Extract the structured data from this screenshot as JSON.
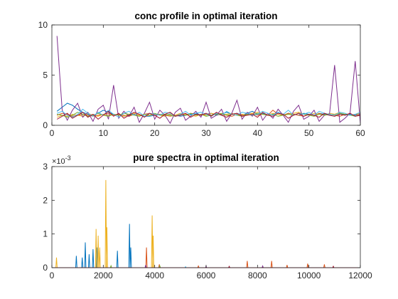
{
  "figure": {
    "background": "#ffffff",
    "series_colors": [
      "#0072BD",
      "#D95319",
      "#EDB120",
      "#7E2F8E",
      "#77AC30",
      "#4DBEEE",
      "#A2142F"
    ]
  },
  "chart_data": [
    {
      "type": "line",
      "title": "conc profile in optimal iteration",
      "xlabel": "",
      "ylabel": "",
      "xlim": [
        0,
        60
      ],
      "ylim": [
        0,
        10
      ],
      "xticks": [
        0,
        10,
        20,
        30,
        40,
        50,
        60
      ],
      "yticks": [
        0,
        5,
        10
      ],
      "x_tick_labels": [
        "0",
        "10",
        "20",
        "30",
        "40",
        "50",
        "60"
      ],
      "y_tick_labels": [
        "0",
        "5",
        "10"
      ],
      "grid": false,
      "legend": "none",
      "x": [
        1,
        2,
        3,
        4,
        5,
        6,
        7,
        8,
        9,
        10,
        11,
        12,
        13,
        14,
        15,
        16,
        17,
        18,
        19,
        20,
        21,
        22,
        23,
        24,
        25,
        26,
        27,
        28,
        29,
        30,
        31,
        32,
        33,
        34,
        35,
        36,
        37,
        38,
        39,
        40,
        41,
        42,
        43,
        44,
        45,
        46,
        47,
        48,
        49,
        50,
        51,
        52,
        53,
        54,
        55,
        56,
        57,
        58,
        59,
        60
      ],
      "series": [
        {
          "color": "#0072BD",
          "values": [
            1.4,
            1.8,
            2.2,
            2.0,
            1.6,
            1.3,
            1.1,
            1.0,
            1.2,
            1.5,
            1.3,
            1.1,
            1.0,
            0.9,
            1.0,
            1.1,
            1.0,
            0.9,
            0.9,
            1.0,
            1.1,
            1.0,
            1.1,
            1.0,
            0.9,
            1.0,
            1.1,
            1.2,
            1.0,
            1.1,
            1.2,
            1.0,
            1.1,
            1.3,
            1.1,
            1.2,
            1.0,
            1.2,
            1.4,
            1.1,
            1.2,
            1.0,
            1.1,
            1.3,
            1.0,
            1.2,
            1.1,
            1.0,
            1.2,
            1.1,
            1.0,
            1.2,
            1.1,
            1.0,
            1.1,
            1.2,
            1.0,
            1.1,
            1.0,
            1.1
          ]
        },
        {
          "color": "#D95319",
          "values": [
            1.0,
            1.2,
            1.1,
            0.9,
            1.0,
            1.1,
            1.0,
            0.9,
            1.0,
            1.1,
            1.2,
            1.0,
            1.1,
            1.0,
            0.9,
            1.1,
            1.0,
            1.1,
            1.2,
            1.0,
            1.1,
            1.0,
            0.9,
            1.0,
            1.1,
            1.0,
            1.2,
            1.1,
            1.0,
            1.1,
            1.0,
            1.2,
            1.1,
            1.0,
            0.9,
            1.1,
            1.0,
            1.1,
            1.2,
            1.0,
            1.1,
            1.0,
            1.5,
            1.1,
            1.0,
            1.2,
            1.1,
            1.0,
            0.9,
            1.1,
            1.0,
            1.2,
            1.0,
            1.1,
            1.0,
            0.9,
            1.1,
            1.0,
            1.1,
            1.0
          ]
        },
        {
          "color": "#EDB120",
          "values": [
            0.8,
            1.0,
            0.9,
            1.1,
            1.0,
            0.9,
            1.2,
            1.0,
            0.9,
            1.1,
            1.0,
            1.1,
            1.0,
            0.9,
            1.1,
            1.2,
            1.0,
            0.9,
            1.0,
            1.1,
            1.0,
            0.9,
            1.1,
            1.0,
            1.2,
            1.1,
            1.0,
            0.9,
            1.1,
            1.0,
            1.2,
            1.1,
            1.0,
            1.1,
            1.2,
            1.0,
            1.1,
            1.0,
            1.2,
            1.3,
            1.1,
            1.0,
            1.2,
            1.1,
            1.0,
            1.1,
            1.2,
            1.3,
            1.1,
            1.0,
            1.2,
            1.1,
            1.0,
            1.2,
            1.1,
            1.3,
            1.2,
            1.0,
            1.1,
            1.2
          ]
        },
        {
          "color": "#7E2F8E",
          "values": [
            8.9,
            1.5,
            0.5,
            1.5,
            2.2,
            0.8,
            1.3,
            0.4,
            1.6,
            2.0,
            0.6,
            4.0,
            0.7,
            1.4,
            0.9,
            1.8,
            0.3,
            1.2,
            2.3,
            0.6,
            1.5,
            1.0,
            0.2,
            1.3,
            1.7,
            0.5,
            0.9,
            1.4,
            0.8,
            2.3,
            0.7,
            1.0,
            1.6,
            0.4,
            1.2,
            2.5,
            0.6,
            1.3,
            0.9,
            1.8,
            0.5,
            1.2,
            0.7,
            1.6,
            1.0,
            0.3,
            1.4,
            2.0,
            0.6,
            0.9,
            1.5,
            0.4,
            1.0,
            1.1,
            6.0,
            0.3,
            0.7,
            1.2,
            6.4,
            0.2
          ]
        },
        {
          "color": "#77AC30",
          "values": [
            1.1,
            1.0,
            0.8,
            1.0,
            1.3,
            1.1,
            0.9,
            1.0,
            1.2,
            1.0,
            0.9,
            1.1,
            1.0,
            1.2,
            1.1,
            1.0,
            0.9,
            1.1,
            1.0,
            1.2,
            1.0,
            1.1,
            1.0,
            0.9,
            1.1,
            1.0,
            1.2,
            1.0,
            1.1,
            0.9,
            1.0,
            1.1,
            1.2,
            1.0,
            1.1,
            1.0,
            0.9,
            1.1,
            1.0,
            1.2,
            1.1,
            1.0,
            1.1,
            0.9,
            1.0,
            1.1,
            1.0,
            1.2,
            1.1,
            1.0,
            0.9,
            1.1,
            1.0,
            1.1,
            1.0,
            1.2,
            1.1,
            1.0,
            0.9,
            1.0
          ]
        },
        {
          "color": "#4DBEEE",
          "values": [
            1.2,
            1.4,
            1.0,
            0.8,
            1.1,
            1.6,
            1.2,
            0.9,
            1.3,
            1.0,
            1.5,
            1.1,
            0.8,
            1.2,
            1.4,
            1.0,
            1.3,
            0.9,
            1.2,
            1.1,
            1.0,
            1.3,
            1.2,
            0.9,
            1.1,
            1.4,
            1.0,
            1.2,
            1.3,
            1.1,
            0.9,
            1.2,
            1.0,
            1.4,
            1.1,
            1.0,
            1.3,
            1.2,
            1.0,
            1.1,
            1.4,
            1.2,
            1.0,
            1.3,
            1.1,
            1.5,
            1.0,
            1.2,
            1.1,
            1.3,
            1.0,
            1.4,
            1.2,
            1.1,
            1.0,
            1.3,
            1.2,
            1.0,
            1.1,
            1.3
          ]
        },
        {
          "color": "#A2142F",
          "values": [
            0.6,
            0.9,
            1.2,
            0.7,
            1.0,
            1.3,
            0.8,
            1.1,
            0.6,
            1.0,
            1.4,
            0.9,
            1.2,
            0.7,
            1.0,
            1.3,
            1.1,
            0.8,
            1.2,
            1.0,
            0.7,
            1.1,
            1.3,
            0.9,
            1.0,
            1.2,
            0.8,
            1.1,
            1.0,
            1.2,
            0.9,
            1.3,
            1.0,
            0.8,
            1.1,
            1.2,
            0.9,
            1.0,
            1.1,
            0.8,
            1.3,
            1.0,
            0.9,
            1.2,
            1.1,
            0.7,
            1.0,
            1.2,
            0.9,
            1.1,
            1.0,
            0.8,
            1.2,
            1.0,
            0.9,
            1.1,
            1.0,
            1.2,
            0.9,
            1.0
          ]
        }
      ]
    },
    {
      "type": "line",
      "title": "pure spectra in optimal iteration",
      "xlabel": "",
      "ylabel": "",
      "xlim": [
        0,
        12000
      ],
      "ylim": [
        0,
        0.003
      ],
      "xticks": [
        0,
        2000,
        4000,
        6000,
        8000,
        10000,
        12000
      ],
      "yticks": [
        0,
        0.001,
        0.002,
        0.003
      ],
      "x_tick_labels": [
        "0",
        "2000",
        "4000",
        "6000",
        "8000",
        "10000",
        "12000"
      ],
      "y_tick_labels": [
        "0",
        "1",
        "2",
        "3"
      ],
      "y_exponent_label": "×10",
      "y_exponent_power": "-3",
      "grid": false,
      "legend": "none",
      "series": [
        {
          "color": "#0072BD",
          "peaks": [
            [
              950,
              0.00035
            ],
            [
              1180,
              0.0003
            ],
            [
              1300,
              0.00075
            ],
            [
              1450,
              0.0004
            ],
            [
              1600,
              0.00055
            ],
            [
              1750,
              0.0006
            ],
            [
              2550,
              0.0005
            ],
            [
              3020,
              0.0013
            ],
            [
              3070,
              0.0006
            ]
          ]
        },
        {
          "color": "#D95319",
          "peaks": [
            [
              3680,
              0.0006
            ],
            [
              4180,
              0.0001
            ],
            [
              5700,
              5e-05
            ],
            [
              7600,
              0.0002
            ],
            [
              8550,
              0.0002
            ],
            [
              9150,
              8e-05
            ],
            [
              9950,
              0.00012
            ],
            [
              10600,
              0.0001
            ]
          ]
        },
        {
          "color": "#EDB120",
          "peaks": [
            [
              180,
              0.0003
            ],
            [
              1720,
              0.00115
            ],
            [
              1800,
              0.00095
            ],
            [
              1860,
              0.0006
            ],
            [
              2100,
              0.0026
            ],
            [
              2140,
              0.0012
            ],
            [
              3900,
              0.00155
            ],
            [
              3940,
              0.00095
            ]
          ]
        },
        {
          "color": "#7E2F8E",
          "peaks": [
            [
              3650,
              8e-05
            ],
            [
              6000,
              4e-05
            ],
            [
              8200,
              5e-05
            ]
          ]
        },
        {
          "color": "#77AC30",
          "peaks": [
            [
              2300,
              6e-05
            ],
            [
              4200,
              5e-05
            ]
          ]
        },
        {
          "color": "#4DBEEE",
          "peaks": [
            [
              5200,
              3e-05
            ]
          ]
        },
        {
          "color": "#A2142F",
          "peaks": [
            [
              6900,
              4e-05
            ],
            [
              10950,
              4e-05
            ]
          ]
        }
      ]
    }
  ]
}
